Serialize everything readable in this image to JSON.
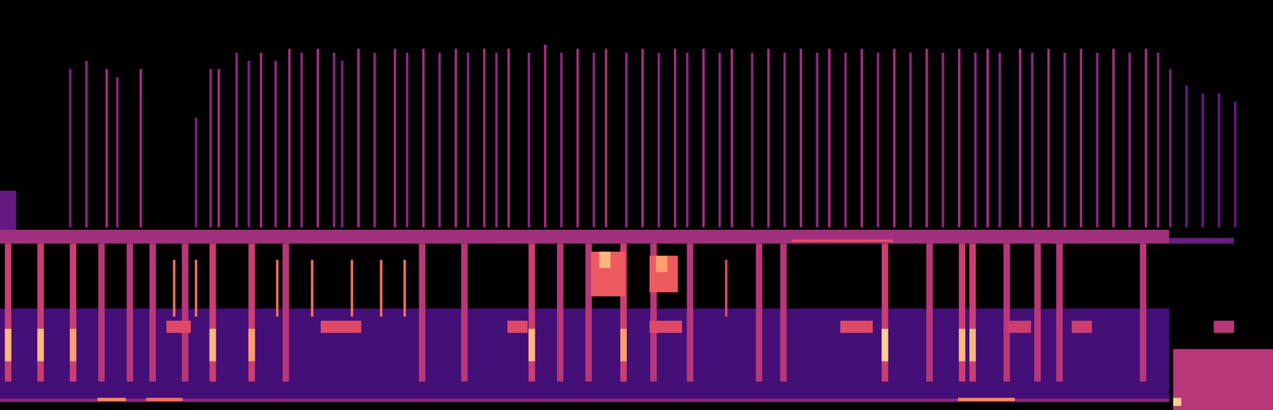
{
  "chart_data": {
    "type": "heatmap",
    "tick_labels": false,
    "grid": false,
    "xlim": [
      0,
      1568
    ],
    "ylim": [
      0,
      505
    ],
    "color": "magma",
    "zlim": [
      0,
      1
    ],
    "cells": [
      {
        "x1": 0,
        "x2": 1440,
        "y1": 10,
        "y2": 125,
        "value": 0.22
      },
      {
        "x1": 0,
        "x2": 1440,
        "y1": 10,
        "y2": 14,
        "value": 0.4
      },
      {
        "x1": 0,
        "x2": 20,
        "y1": 205,
        "y2": 270,
        "value": 0.3
      },
      {
        "x1": 85,
        "x2": 88,
        "y1": 225,
        "y2": 420,
        "value": 0.35
      },
      {
        "x1": 105,
        "x2": 108,
        "y1": 225,
        "y2": 430,
        "value": 0.4
      },
      {
        "x1": 130,
        "x2": 133,
        "y1": 225,
        "y2": 420,
        "value": 0.45
      },
      {
        "x1": 143,
        "x2": 146,
        "y1": 225,
        "y2": 410,
        "value": 0.4
      },
      {
        "x1": 172,
        "x2": 175,
        "y1": 225,
        "y2": 420,
        "value": 0.45
      },
      {
        "x1": 240,
        "x2": 243,
        "y1": 225,
        "y2": 360,
        "value": 0.35
      },
      {
        "x1": 258,
        "x2": 261,
        "y1": 225,
        "y2": 420,
        "value": 0.4
      },
      {
        "x1": 268,
        "x2": 271,
        "y1": 225,
        "y2": 420,
        "value": 0.45
      },
      {
        "x1": 290,
        "x2": 293,
        "y1": 225,
        "y2": 440,
        "value": 0.4
      },
      {
        "x1": 305,
        "x2": 308,
        "y1": 225,
        "y2": 430,
        "value": 0.35
      },
      {
        "x1": 320,
        "x2": 323,
        "y1": 225,
        "y2": 440,
        "value": 0.45
      },
      {
        "x1": 338,
        "x2": 341,
        "y1": 225,
        "y2": 430,
        "value": 0.4
      },
      {
        "x1": 355,
        "x2": 358,
        "y1": 225,
        "y2": 445,
        "value": 0.45
      },
      {
        "x1": 370,
        "x2": 373,
        "y1": 225,
        "y2": 440,
        "value": 0.4
      },
      {
        "x1": 390,
        "x2": 393,
        "y1": 225,
        "y2": 445,
        "value": 0.45
      },
      {
        "x1": 410,
        "x2": 413,
        "y1": 225,
        "y2": 440,
        "value": 0.4
      },
      {
        "x1": 420,
        "x2": 423,
        "y1": 225,
        "y2": 430,
        "value": 0.35
      },
      {
        "x1": 440,
        "x2": 443,
        "y1": 225,
        "y2": 445,
        "value": 0.45
      },
      {
        "x1": 460,
        "x2": 463,
        "y1": 225,
        "y2": 440,
        "value": 0.4
      },
      {
        "x1": 485,
        "x2": 488,
        "y1": 225,
        "y2": 445,
        "value": 0.45
      },
      {
        "x1": 500,
        "x2": 503,
        "y1": 225,
        "y2": 440,
        "value": 0.4
      },
      {
        "x1": 520,
        "x2": 523,
        "y1": 225,
        "y2": 445,
        "value": 0.45
      },
      {
        "x1": 540,
        "x2": 543,
        "y1": 225,
        "y2": 440,
        "value": 0.4
      },
      {
        "x1": 560,
        "x2": 563,
        "y1": 225,
        "y2": 445,
        "value": 0.45
      },
      {
        "x1": 575,
        "x2": 578,
        "y1": 225,
        "y2": 440,
        "value": 0.4
      },
      {
        "x1": 595,
        "x2": 598,
        "y1": 225,
        "y2": 445,
        "value": 0.45
      },
      {
        "x1": 610,
        "x2": 613,
        "y1": 225,
        "y2": 440,
        "value": 0.4
      },
      {
        "x1": 625,
        "x2": 628,
        "y1": 225,
        "y2": 445,
        "value": 0.45
      },
      {
        "x1": 650,
        "x2": 653,
        "y1": 225,
        "y2": 440,
        "value": 0.4
      },
      {
        "x1": 670,
        "x2": 673,
        "y1": 225,
        "y2": 450,
        "value": 0.45
      },
      {
        "x1": 690,
        "x2": 693,
        "y1": 225,
        "y2": 440,
        "value": 0.4
      },
      {
        "x1": 710,
        "x2": 713,
        "y1": 225,
        "y2": 445,
        "value": 0.45
      },
      {
        "x1": 730,
        "x2": 733,
        "y1": 225,
        "y2": 440,
        "value": 0.4
      },
      {
        "x1": 745,
        "x2": 748,
        "y1": 225,
        "y2": 445,
        "value": 0.45
      },
      {
        "x1": 770,
        "x2": 773,
        "y1": 225,
        "y2": 440,
        "value": 0.4
      },
      {
        "x1": 790,
        "x2": 793,
        "y1": 225,
        "y2": 445,
        "value": 0.45
      },
      {
        "x1": 810,
        "x2": 813,
        "y1": 225,
        "y2": 440,
        "value": 0.4
      },
      {
        "x1": 830,
        "x2": 833,
        "y1": 225,
        "y2": 445,
        "value": 0.45
      },
      {
        "x1": 845,
        "x2": 848,
        "y1": 225,
        "y2": 440,
        "value": 0.4
      },
      {
        "x1": 865,
        "x2": 868,
        "y1": 225,
        "y2": 445,
        "value": 0.45
      },
      {
        "x1": 885,
        "x2": 888,
        "y1": 225,
        "y2": 440,
        "value": 0.4
      },
      {
        "x1": 900,
        "x2": 903,
        "y1": 225,
        "y2": 445,
        "value": 0.45
      },
      {
        "x1": 925,
        "x2": 928,
        "y1": 225,
        "y2": 440,
        "value": 0.4
      },
      {
        "x1": 945,
        "x2": 948,
        "y1": 225,
        "y2": 445,
        "value": 0.45
      },
      {
        "x1": 965,
        "x2": 968,
        "y1": 225,
        "y2": 440,
        "value": 0.4
      },
      {
        "x1": 985,
        "x2": 988,
        "y1": 225,
        "y2": 445,
        "value": 0.45
      },
      {
        "x1": 1005,
        "x2": 1008,
        "y1": 225,
        "y2": 440,
        "value": 0.4
      },
      {
        "x1": 1020,
        "x2": 1023,
        "y1": 225,
        "y2": 445,
        "value": 0.45
      },
      {
        "x1": 1040,
        "x2": 1043,
        "y1": 225,
        "y2": 440,
        "value": 0.4
      },
      {
        "x1": 1060,
        "x2": 1063,
        "y1": 225,
        "y2": 445,
        "value": 0.45
      },
      {
        "x1": 1080,
        "x2": 1083,
        "y1": 225,
        "y2": 440,
        "value": 0.4
      },
      {
        "x1": 1100,
        "x2": 1103,
        "y1": 225,
        "y2": 445,
        "value": 0.45
      },
      {
        "x1": 1120,
        "x2": 1123,
        "y1": 225,
        "y2": 440,
        "value": 0.4
      },
      {
        "x1": 1140,
        "x2": 1143,
        "y1": 225,
        "y2": 445,
        "value": 0.45
      },
      {
        "x1": 1160,
        "x2": 1163,
        "y1": 225,
        "y2": 440,
        "value": 0.4
      },
      {
        "x1": 1180,
        "x2": 1183,
        "y1": 225,
        "y2": 445,
        "value": 0.45
      },
      {
        "x1": 1200,
        "x2": 1203,
        "y1": 225,
        "y2": 440,
        "value": 0.4
      },
      {
        "x1": 1215,
        "x2": 1218,
        "y1": 225,
        "y2": 445,
        "value": 0.45
      },
      {
        "x1": 1230,
        "x2": 1233,
        "y1": 225,
        "y2": 440,
        "value": 0.4
      },
      {
        "x1": 1255,
        "x2": 1258,
        "y1": 225,
        "y2": 445,
        "value": 0.45
      },
      {
        "x1": 1270,
        "x2": 1273,
        "y1": 225,
        "y2": 440,
        "value": 0.4
      },
      {
        "x1": 1290,
        "x2": 1293,
        "y1": 225,
        "y2": 445,
        "value": 0.45
      },
      {
        "x1": 1310,
        "x2": 1313,
        "y1": 225,
        "y2": 440,
        "value": 0.4
      },
      {
        "x1": 1330,
        "x2": 1333,
        "y1": 225,
        "y2": 445,
        "value": 0.45
      },
      {
        "x1": 1350,
        "x2": 1353,
        "y1": 225,
        "y2": 440,
        "value": 0.4
      },
      {
        "x1": 1370,
        "x2": 1373,
        "y1": 225,
        "y2": 445,
        "value": 0.45
      },
      {
        "x1": 1390,
        "x2": 1393,
        "y1": 225,
        "y2": 440,
        "value": 0.4
      },
      {
        "x1": 1410,
        "x2": 1413,
        "y1": 225,
        "y2": 445,
        "value": 0.45
      },
      {
        "x1": 1425,
        "x2": 1428,
        "y1": 225,
        "y2": 440,
        "value": 0.4
      },
      {
        "x1": 1440,
        "x2": 1443,
        "y1": 225,
        "y2": 420,
        "value": 0.35
      },
      {
        "x1": 1460,
        "x2": 1463,
        "y1": 225,
        "y2": 400,
        "value": 0.3
      },
      {
        "x1": 1480,
        "x2": 1483,
        "y1": 225,
        "y2": 390,
        "value": 0.3
      },
      {
        "x1": 1500,
        "x2": 1503,
        "y1": 225,
        "y2": 390,
        "value": 0.3
      },
      {
        "x1": 1520,
        "x2": 1523,
        "y1": 225,
        "y2": 380,
        "value": 0.3
      },
      {
        "x1": 0,
        "x2": 1440,
        "y1": 205,
        "y2": 222,
        "value": 0.45
      },
      {
        "x1": 975,
        "x2": 1100,
        "y1": 207,
        "y2": 210,
        "value": 0.62
      },
      {
        "x1": 1440,
        "x2": 1520,
        "y1": 205,
        "y2": 212,
        "value": 0.32
      },
      {
        "x1": 6,
        "x2": 14,
        "y1": 35,
        "y2": 205,
        "value": 0.55
      },
      {
        "x1": 46,
        "x2": 54,
        "y1": 35,
        "y2": 205,
        "value": 0.55
      },
      {
        "x1": 86,
        "x2": 94,
        "y1": 35,
        "y2": 205,
        "value": 0.55
      },
      {
        "x1": 121,
        "x2": 129,
        "y1": 35,
        "y2": 205,
        "value": 0.5
      },
      {
        "x1": 156,
        "x2": 164,
        "y1": 35,
        "y2": 205,
        "value": 0.5
      },
      {
        "x1": 184,
        "x2": 192,
        "y1": 35,
        "y2": 205,
        "value": 0.5
      },
      {
        "x1": 224,
        "x2": 232,
        "y1": 35,
        "y2": 205,
        "value": 0.5
      },
      {
        "x1": 258,
        "x2": 266,
        "y1": 35,
        "y2": 205,
        "value": 0.55
      },
      {
        "x1": 306,
        "x2": 314,
        "y1": 35,
        "y2": 205,
        "value": 0.55
      },
      {
        "x1": 348,
        "x2": 356,
        "y1": 35,
        "y2": 205,
        "value": 0.5
      },
      {
        "x1": 516,
        "x2": 524,
        "y1": 35,
        "y2": 205,
        "value": 0.5
      },
      {
        "x1": 568,
        "x2": 576,
        "y1": 35,
        "y2": 205,
        "value": 0.5
      },
      {
        "x1": 651,
        "x2": 659,
        "y1": 35,
        "y2": 205,
        "value": 0.55
      },
      {
        "x1": 686,
        "x2": 694,
        "y1": 35,
        "y2": 205,
        "value": 0.5
      },
      {
        "x1": 721,
        "x2": 729,
        "y1": 35,
        "y2": 205,
        "value": 0.5
      },
      {
        "x1": 764,
        "x2": 772,
        "y1": 35,
        "y2": 205,
        "value": 0.55
      },
      {
        "x1": 801,
        "x2": 809,
        "y1": 35,
        "y2": 205,
        "value": 0.5
      },
      {
        "x1": 846,
        "x2": 854,
        "y1": 35,
        "y2": 205,
        "value": 0.5
      },
      {
        "x1": 931,
        "x2": 939,
        "y1": 35,
        "y2": 205,
        "value": 0.5
      },
      {
        "x1": 961,
        "x2": 969,
        "y1": 35,
        "y2": 205,
        "value": 0.5
      },
      {
        "x1": 1086,
        "x2": 1094,
        "y1": 35,
        "y2": 205,
        "value": 0.55
      },
      {
        "x1": 1141,
        "x2": 1149,
        "y1": 35,
        "y2": 205,
        "value": 0.5
      },
      {
        "x1": 1181,
        "x2": 1189,
        "y1": 35,
        "y2": 205,
        "value": 0.55
      },
      {
        "x1": 1194,
        "x2": 1202,
        "y1": 35,
        "y2": 205,
        "value": 0.55
      },
      {
        "x1": 1236,
        "x2": 1244,
        "y1": 35,
        "y2": 205,
        "value": 0.5
      },
      {
        "x1": 1274,
        "x2": 1282,
        "y1": 35,
        "y2": 205,
        "value": 0.5
      },
      {
        "x1": 1301,
        "x2": 1309,
        "y1": 35,
        "y2": 205,
        "value": 0.5
      },
      {
        "x1": 1404,
        "x2": 1412,
        "y1": 35,
        "y2": 205,
        "value": 0.5
      },
      {
        "x1": 6,
        "x2": 14,
        "y1": 60,
        "y2": 100,
        "value": 0.85
      },
      {
        "x1": 46,
        "x2": 54,
        "y1": 60,
        "y2": 100,
        "value": 0.85
      },
      {
        "x1": 86,
        "x2": 94,
        "y1": 60,
        "y2": 100,
        "value": 0.8
      },
      {
        "x1": 258,
        "x2": 266,
        "y1": 60,
        "y2": 100,
        "value": 0.85
      },
      {
        "x1": 306,
        "x2": 314,
        "y1": 60,
        "y2": 100,
        "value": 0.8
      },
      {
        "x1": 651,
        "x2": 659,
        "y1": 60,
        "y2": 100,
        "value": 0.85
      },
      {
        "x1": 764,
        "x2": 772,
        "y1": 60,
        "y2": 100,
        "value": 0.8
      },
      {
        "x1": 1086,
        "x2": 1094,
        "y1": 60,
        "y2": 100,
        "value": 0.9
      },
      {
        "x1": 1181,
        "x2": 1189,
        "y1": 60,
        "y2": 100,
        "value": 0.85
      },
      {
        "x1": 1194,
        "x2": 1202,
        "y1": 60,
        "y2": 100,
        "value": 0.85
      },
      {
        "x1": 213,
        "x2": 216,
        "y1": 115,
        "y2": 185,
        "value": 0.7
      },
      {
        "x1": 240,
        "x2": 243,
        "y1": 115,
        "y2": 185,
        "value": 0.7
      },
      {
        "x1": 340,
        "x2": 343,
        "y1": 115,
        "y2": 185,
        "value": 0.7
      },
      {
        "x1": 383,
        "x2": 386,
        "y1": 115,
        "y2": 185,
        "value": 0.7
      },
      {
        "x1": 432,
        "x2": 435,
        "y1": 115,
        "y2": 185,
        "value": 0.7
      },
      {
        "x1": 468,
        "x2": 471,
        "y1": 115,
        "y2": 185,
        "value": 0.7
      },
      {
        "x1": 497,
        "x2": 500,
        "y1": 115,
        "y2": 185,
        "value": 0.7
      },
      {
        "x1": 893,
        "x2": 896,
        "y1": 115,
        "y2": 185,
        "value": 0.6
      },
      {
        "x1": 205,
        "x2": 235,
        "y1": 95,
        "y2": 110,
        "value": 0.6
      },
      {
        "x1": 395,
        "x2": 445,
        "y1": 95,
        "y2": 110,
        "value": 0.6
      },
      {
        "x1": 625,
        "x2": 650,
        "y1": 95,
        "y2": 110,
        "value": 0.6
      },
      {
        "x1": 800,
        "x2": 840,
        "y1": 95,
        "y2": 110,
        "value": 0.6
      },
      {
        "x1": 1035,
        "x2": 1075,
        "y1": 95,
        "y2": 110,
        "value": 0.6
      },
      {
        "x1": 1240,
        "x2": 1270,
        "y1": 95,
        "y2": 110,
        "value": 0.55
      },
      {
        "x1": 1320,
        "x2": 1345,
        "y1": 95,
        "y2": 110,
        "value": 0.55
      },
      {
        "x1": 1495,
        "x2": 1520,
        "y1": 95,
        "y2": 110,
        "value": 0.5
      },
      {
        "x1": 728,
        "x2": 770,
        "y1": 140,
        "y2": 195,
        "value": 0.65
      },
      {
        "x1": 738,
        "x2": 752,
        "y1": 175,
        "y2": 195,
        "value": 0.85
      },
      {
        "x1": 800,
        "x2": 835,
        "y1": 145,
        "y2": 190,
        "value": 0.65
      },
      {
        "x1": 808,
        "x2": 822,
        "y1": 170,
        "y2": 190,
        "value": 0.8
      },
      {
        "x1": 120,
        "x2": 155,
        "y1": 11,
        "y2": 15,
        "value": 0.75
      },
      {
        "x1": 180,
        "x2": 225,
        "y1": 11,
        "y2": 15,
        "value": 0.7
      },
      {
        "x1": 1180,
        "x2": 1250,
        "y1": 11,
        "y2": 15,
        "value": 0.75
      },
      {
        "x1": 1445,
        "x2": 1568,
        "y1": 0,
        "y2": 75,
        "value": 0.5
      },
      {
        "x1": 1445,
        "x2": 1455,
        "y1": 5,
        "y2": 15,
        "value": 0.9
      }
    ]
  }
}
